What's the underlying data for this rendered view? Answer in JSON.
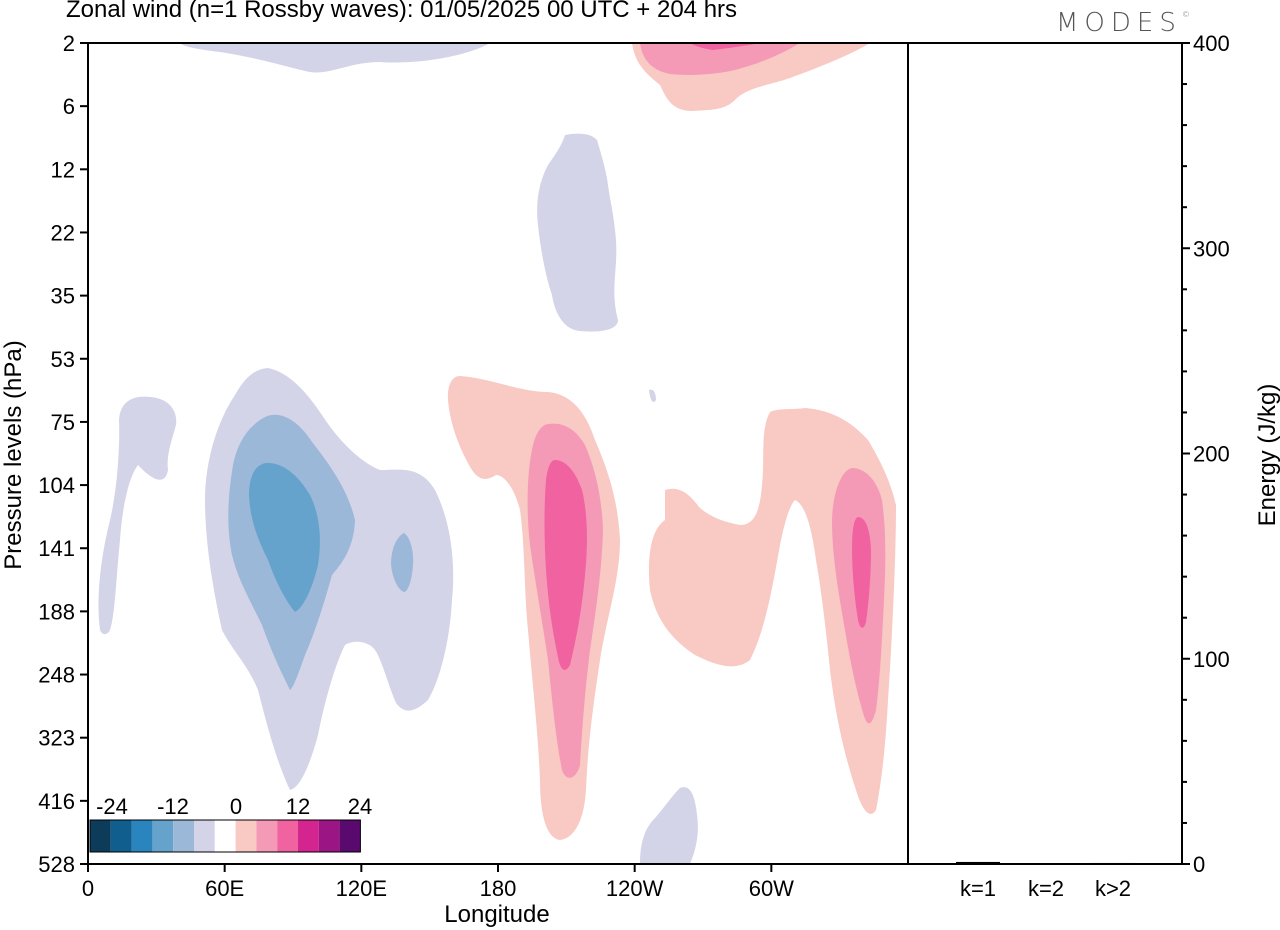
{
  "title": "Zonal wind (n=1 Rossby waves):  01/05/2025  00 UTC  + 204 hrs",
  "brand": "MODES",
  "chart_data": [
    {
      "type": "heatmap",
      "xlabel": "Longitude",
      "ylabel": "Pressure levels (hPa)",
      "x_ticks": [
        "0",
        "60E",
        "120E",
        "180",
        "120W",
        "60W"
      ],
      "y_ticks": [
        "2",
        "6",
        "12",
        "22",
        "35",
        "53",
        "75",
        "104",
        "141",
        "188",
        "248",
        "323",
        "416",
        "528"
      ],
      "colorbar": {
        "labels": [
          "-24",
          "-12",
          "0",
          "12",
          "24"
        ],
        "colors": [
          "#0d3b5a",
          "#0f5e8e",
          "#2a84bd",
          "#66a3cc",
          "#9cb8d9",
          "#d3d4e8",
          "#ffffff",
          "#f9c9c4",
          "#f49ab6",
          "#f062a0",
          "#d32490",
          "#9c1584",
          "#5a0a6e"
        ]
      },
      "features": [
        {
          "sign": "negative",
          "max_level": 2,
          "center_lon": 75,
          "center_plev": 141
        },
        {
          "sign": "negative",
          "max_level": 1,
          "center_lon": 137,
          "center_plev": 141
        },
        {
          "sign": "negative",
          "max_level": 1,
          "center_lon": 213,
          "center_plev": 22
        },
        {
          "sign": "negative",
          "max_level": 1,
          "center_lon": 140,
          "center_plev": 2
        },
        {
          "sign": "negative",
          "max_level": 1,
          "center_lon": 245,
          "center_plev": 528
        },
        {
          "sign": "positive",
          "max_level": 3,
          "center_lon": 211,
          "center_plev": 141
        },
        {
          "sign": "positive",
          "max_level": 3,
          "center_lon": 321,
          "center_plev": 141
        },
        {
          "sign": "positive",
          "max_level": 2,
          "center_lon": 260,
          "center_plev": 2
        }
      ]
    },
    {
      "type": "bar",
      "ylabel": "Energy (J/kg)",
      "categories": [
        "k=1",
        "k=2",
        "k>2"
      ],
      "values": [
        1,
        0,
        0.5
      ],
      "ylim": [
        0,
        400
      ],
      "y_ticks": [
        "0",
        "100",
        "200",
        "300",
        "400"
      ]
    }
  ]
}
